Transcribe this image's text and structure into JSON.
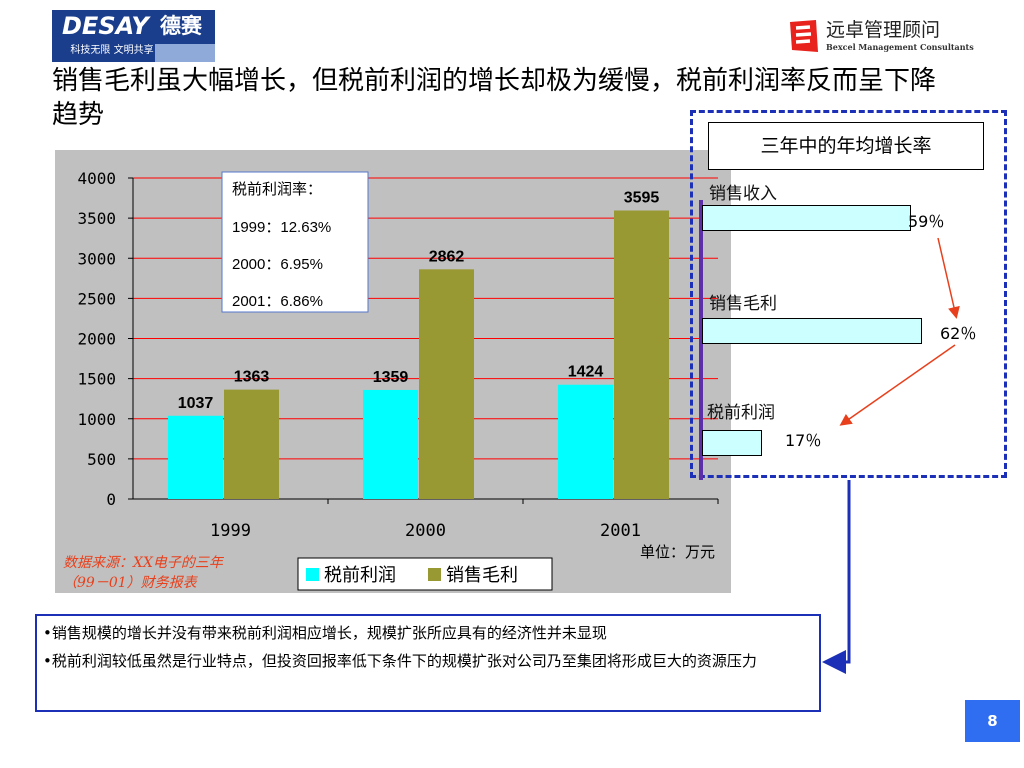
{
  "header": {
    "left_logo": {
      "brand_latin": "DESAY",
      "brand_cn": "德赛",
      "slogan": "科技无限 文明共享"
    },
    "right_logo": {
      "name_cn": "远卓管理顾问",
      "name_en": "Bexcel Management Consultants"
    }
  },
  "title": "销售毛利虽大幅增长，但税前利润的增长却极为缓慢，税前利润率反而呈下降趋势",
  "chart_data": {
    "type": "bar",
    "categories": [
      "1999",
      "2000",
      "2001"
    ],
    "series": [
      {
        "name": "税前利润",
        "values": [
          1037,
          1359,
          1424
        ],
        "color": "#00ffff"
      },
      {
        "name": "销售毛利",
        "values": [
          1363,
          2862,
          3595
        ],
        "color": "#999933"
      }
    ],
    "ylim": [
      0,
      4000
    ],
    "yticks": [
      "0",
      "500",
      "1000",
      "1500",
      "2000",
      "2500",
      "3000",
      "3500",
      "4000"
    ],
    "grid": true,
    "gridline_color": "#ff0000",
    "legend": "bottom",
    "unit": "单位：万元",
    "source": "数据来源：XX电子的三年（99－01）财务报表",
    "annotation": {
      "title": "税前利润率：",
      "lines": [
        "1999：12.63%",
        "2000：6.95%",
        "2001：6.86%"
      ]
    }
  },
  "growth_panel": {
    "title": "三年中的年均增长率",
    "items": [
      {
        "label": "销售收入",
        "percent": 59,
        "display": "59％"
      },
      {
        "label": "销售毛利",
        "percent": 62,
        "display": "62％"
      },
      {
        "label": "税前利润",
        "percent": 17,
        "display": "17％"
      }
    ]
  },
  "conclusions": [
    "•销售规模的增长并没有带来税前利润相应增长，规模扩张所应具有的经济性并未显现",
    "•税前利润较低虽然是行业特点，但投资回报率低下条件下的规模扩张对公司乃至集团将形成巨大的资源压力"
  ],
  "page_number": "8",
  "colors": {
    "accent_blue": "#1c2fb7",
    "arrow_red": "#e8401c",
    "page_badge": "#2f6ef0"
  }
}
